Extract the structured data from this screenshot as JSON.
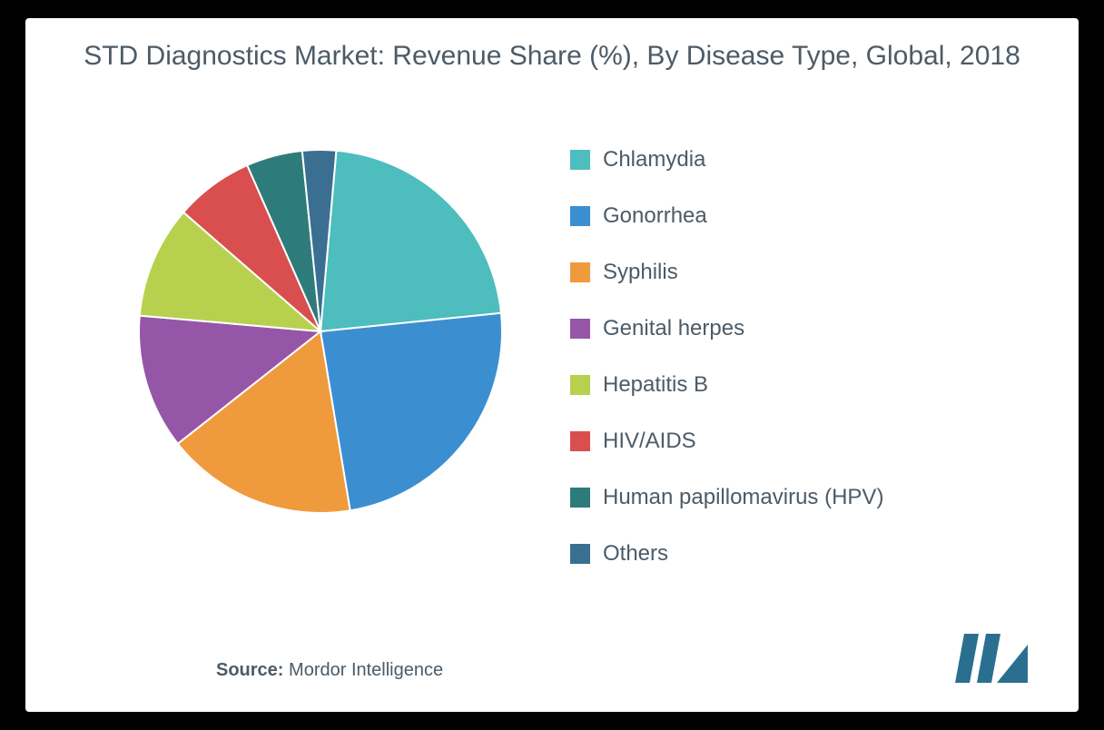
{
  "title": "STD Diagnostics Market: Revenue Share (%), By Disease Type, Global, 2018",
  "source_label": "Source:",
  "source_value": "Mordor Intelligence",
  "background_color": "#000000",
  "card_color": "#ffffff",
  "text_color": "#4c5b67",
  "title_fontsize": 30,
  "legend_fontsize": 24,
  "chart": {
    "type": "pie",
    "start_angle_deg": -85,
    "direction": "clockwise",
    "stroke_color": "#ffffff",
    "stroke_width": 2,
    "slices": [
      {
        "label": "Chlamydia",
        "value": 22,
        "color": "#4dbdbd"
      },
      {
        "label": "Gonorrhea",
        "value": 24,
        "color": "#3b8fd1"
      },
      {
        "label": "Syphilis",
        "value": 17,
        "color": "#f09a3e"
      },
      {
        "label": "Genital herpes",
        "value": 12,
        "color": "#9656a8"
      },
      {
        "label": "Hepatitis B",
        "value": 10,
        "color": "#b7d14e"
      },
      {
        "label": "HIV/AIDS",
        "value": 7,
        "color": "#d94f4f"
      },
      {
        "label": "Human papillomavirus (HPV)",
        "value": 5,
        "color": "#2e7b7b"
      },
      {
        "label": "Others",
        "value": 3,
        "color": "#3a6f91"
      }
    ]
  },
  "logo": {
    "bar_color": "#2a6f90",
    "triangle_color": "#2a6f90"
  }
}
